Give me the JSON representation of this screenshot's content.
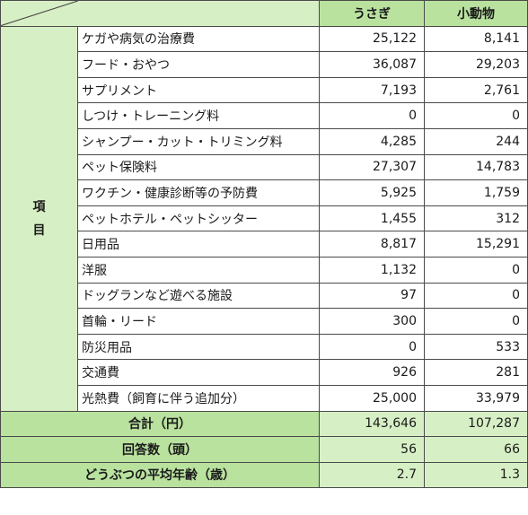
{
  "header": {
    "col_rabbit": "うさぎ",
    "col_small": "小動物"
  },
  "side_label": [
    "項",
    "目"
  ],
  "rows": [
    {
      "item": "ケガや病気の治療費",
      "rabbit": "25,122",
      "small": "8,141"
    },
    {
      "item": "フード・おやつ",
      "rabbit": "36,087",
      "small": "29,203"
    },
    {
      "item": "サプリメント",
      "rabbit": "7,193",
      "small": "2,761"
    },
    {
      "item": "しつけ・トレーニング料",
      "rabbit": "0",
      "small": "0"
    },
    {
      "item": "シャンプー・カット・トリミング料",
      "rabbit": "4,285",
      "small": "244"
    },
    {
      "item": "ペット保険料",
      "rabbit": "27,307",
      "small": "14,783"
    },
    {
      "item": "ワクチン・健康診断等の予防費",
      "rabbit": "5,925",
      "small": "1,759"
    },
    {
      "item": "ペットホテル・ペットシッター",
      "rabbit": "1,455",
      "small": "312"
    },
    {
      "item": "日用品",
      "rabbit": "8,817",
      "small": "15,291"
    },
    {
      "item": "洋服",
      "rabbit": "1,132",
      "small": "0"
    },
    {
      "item": "ドッグランなど遊べる施設",
      "rabbit": "97",
      "small": "0"
    },
    {
      "item": "首輪・リード",
      "rabbit": "300",
      "small": "0"
    },
    {
      "item": "防災用品",
      "rabbit": "0",
      "small": "533"
    },
    {
      "item": "交通費",
      "rabbit": "926",
      "small": "281"
    },
    {
      "item": "光熱費（飼育に伴う追加分）",
      "rabbit": "25,000",
      "small": "33,979"
    }
  ],
  "summary": [
    {
      "label": "合計（円）",
      "rabbit": "143,646",
      "small": "107,287"
    },
    {
      "label": "回答数（頭）",
      "rabbit": "56",
      "small": "66"
    },
    {
      "label": "どうぶつの平均年齢（歳）",
      "rabbit": "2.7",
      "small": "1.3"
    }
  ],
  "colors": {
    "header_green": "#b9e29f",
    "light_green": "#d7efc5",
    "border": "#4a4a4a"
  }
}
